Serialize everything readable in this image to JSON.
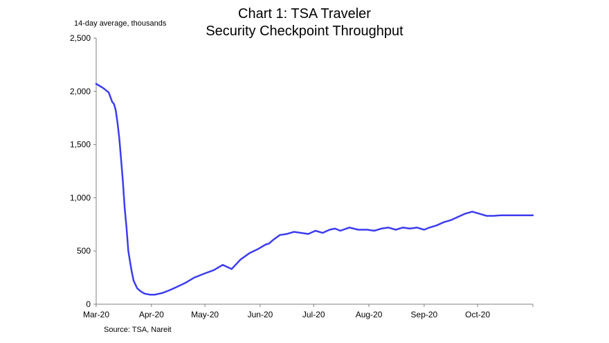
{
  "chart_data": {
    "type": "line",
    "title": "Chart 1: TSA Traveler",
    "subtitle": "Security Checkpoint Throughput",
    "ylabel": "14-day average, thousands",
    "xlabel": "",
    "source": "Source: TSA, Nareit",
    "ylim": [
      0,
      2500
    ],
    "yticks": [
      0,
      500,
      1000,
      1500,
      2000,
      2500
    ],
    "ytick_labels": [
      "0",
      "500",
      "1,000",
      "1,500",
      "2,000",
      "2,500"
    ],
    "xlim": [
      "2020-03-01",
      "2020-11-01"
    ],
    "x_tick_dates": [
      "2020-03-01",
      "2020-04-01",
      "2020-05-01",
      "2020-06-01",
      "2020-07-01",
      "2020-08-01",
      "2020-09-01",
      "2020-10-01"
    ],
    "x_tick_labels": [
      "Mar-20",
      "Apr-20",
      "May-20",
      "Jun-20",
      "Jul-20",
      "Aug-20",
      "Sep-20",
      "Oct-20"
    ],
    "grid": false,
    "line_color": "#3c3cf0",
    "series": [
      {
        "x": [
          "2020-03-01",
          "2020-03-05",
          "2020-03-08",
          "2020-03-10",
          "2020-03-11",
          "2020-03-12",
          "2020-03-13",
          "2020-03-14",
          "2020-03-15",
          "2020-03-16",
          "2020-03-17",
          "2020-03-18",
          "2020-03-19",
          "2020-03-20",
          "2020-03-21",
          "2020-03-22",
          "2020-03-24",
          "2020-03-26",
          "2020-03-28",
          "2020-03-31",
          "2020-04-03",
          "2020-04-07",
          "2020-04-11",
          "2020-04-15",
          "2020-04-20",
          "2020-04-25",
          "2020-05-01",
          "2020-05-06",
          "2020-05-11",
          "2020-05-16",
          "2020-05-21",
          "2020-05-26",
          "2020-05-31",
          "2020-06-04",
          "2020-06-06",
          "2020-06-08",
          "2020-06-12",
          "2020-06-16",
          "2020-06-20",
          "2020-06-24",
          "2020-06-28",
          "2020-07-02",
          "2020-07-06",
          "2020-07-10",
          "2020-07-13",
          "2020-07-16",
          "2020-07-21",
          "2020-07-26",
          "2020-07-31",
          "2020-08-04",
          "2020-08-08",
          "2020-08-12",
          "2020-08-16",
          "2020-08-20",
          "2020-08-24",
          "2020-08-28",
          "2020-09-01",
          "2020-09-04",
          "2020-09-08",
          "2020-09-12",
          "2020-09-16",
          "2020-09-20",
          "2020-09-24",
          "2020-09-28",
          "2020-10-02",
          "2020-10-06",
          "2020-10-10",
          "2020-10-14",
          "2020-10-18",
          "2020-10-21",
          "2020-10-24",
          "2020-10-27",
          "2020-10-29",
          "2020-11-01"
        ],
        "values": [
          2070,
          2030,
          1990,
          1900,
          1880,
          1820,
          1700,
          1550,
          1350,
          1150,
          900,
          720,
          500,
          400,
          300,
          220,
          150,
          120,
          100,
          90,
          90,
          105,
          130,
          160,
          200,
          250,
          290,
          320,
          370,
          330,
          420,
          480,
          520,
          560,
          570,
          600,
          650,
          660,
          680,
          670,
          660,
          690,
          670,
          700,
          710,
          690,
          720,
          700,
          700,
          690,
          710,
          720,
          700,
          720,
          710,
          720,
          700,
          720,
          740,
          770,
          790,
          820,
          850,
          870,
          850,
          830,
          830,
          835,
          835,
          835,
          835,
          835,
          835,
          835
        ]
      }
    ]
  }
}
